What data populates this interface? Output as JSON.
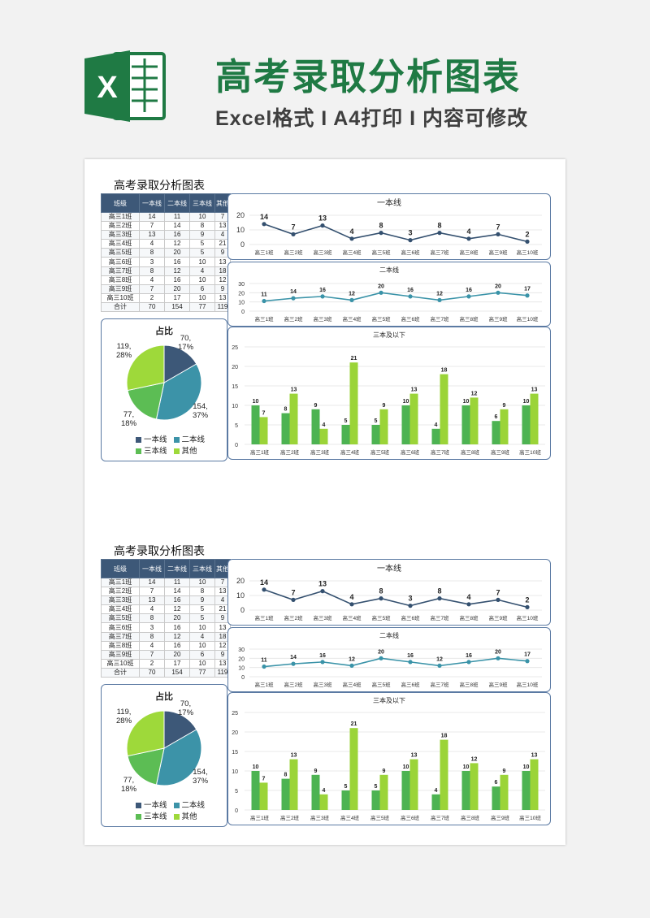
{
  "banner": {
    "logo_letter": "X",
    "title": "高考录取分析图表",
    "subtitle": "Excel格式 I A4打印 I 内容可修改"
  },
  "sheet": {
    "title": "高考录取分析图表",
    "table": {
      "headers": [
        "班级",
        "一本线",
        "二本线",
        "三本线",
        "其他"
      ],
      "rows": [
        [
          "高三1班",
          "14",
          "11",
          "10",
          "7"
        ],
        [
          "高三2班",
          "7",
          "14",
          "8",
          "13"
        ],
        [
          "高三3班",
          "13",
          "16",
          "9",
          "4"
        ],
        [
          "高三4班",
          "4",
          "12",
          "5",
          "21"
        ],
        [
          "高三5班",
          "8",
          "20",
          "5",
          "9"
        ],
        [
          "高三6班",
          "3",
          "16",
          "10",
          "13"
        ],
        [
          "高三7班",
          "8",
          "12",
          "4",
          "18"
        ],
        [
          "高三8班",
          "4",
          "16",
          "10",
          "12"
        ],
        [
          "高三9班",
          "7",
          "20",
          "6",
          "9"
        ],
        [
          "高三10班",
          "2",
          "17",
          "10",
          "13"
        ]
      ],
      "total": [
        "合计",
        "70",
        "154",
        "77",
        "119"
      ]
    },
    "pie": {
      "title": "占比",
      "labels": [
        {
          "line1": "70,",
          "line2": "17%"
        },
        {
          "line1": "154,",
          "line2": "37%"
        },
        {
          "line1": "77,",
          "line2": "18%"
        },
        {
          "line1": "119,",
          "line2": "28%"
        }
      ],
      "legend": [
        "一本线",
        "二本线",
        "三本线",
        "其他"
      ]
    }
  },
  "colors": {
    "banner_green": "#1f7a44",
    "header_navy": "#3d5878",
    "panel_border": "#5b7aa3",
    "line1": "#34506f",
    "line2": "#3a93a8",
    "bar_dark": "#4db352",
    "bar_light": "#9bd438",
    "pie": [
      "#3d5878",
      "#3c93a8",
      "#5cbd54",
      "#9ed93a"
    ]
  },
  "chart_data": [
    {
      "type": "line",
      "title": "一本线",
      "categories": [
        "高三1班",
        "高三2班",
        "高三3班",
        "高三4班",
        "高三5班",
        "高三6班",
        "高三7班",
        "高三8班",
        "高三9班",
        "高三10班"
      ],
      "values": [
        14,
        7,
        13,
        4,
        8,
        3,
        8,
        4,
        7,
        2
      ],
      "yticks": [
        0,
        10,
        20
      ],
      "ylim": [
        0,
        20
      ]
    },
    {
      "type": "line",
      "title": "二本线",
      "categories": [
        "高三1班",
        "高三2班",
        "高三3班",
        "高三4班",
        "高三5班",
        "高三6班",
        "高三7班",
        "高三8班",
        "高三9班",
        "高三10班"
      ],
      "values": [
        11,
        14,
        16,
        12,
        20,
        16,
        12,
        16,
        20,
        17
      ],
      "yticks": [
        0,
        10,
        20,
        30
      ],
      "ylim": [
        0,
        30
      ]
    },
    {
      "type": "bar",
      "title": "三本及以下",
      "categories": [
        "高三1班",
        "高三2班",
        "高三3班",
        "高三4班",
        "高三5班",
        "高三6班",
        "高三7班",
        "高三8班",
        "高三9班",
        "高三10班"
      ],
      "series": [
        {
          "values": [
            10,
            8,
            9,
            5,
            5,
            10,
            4,
            10,
            6,
            10
          ]
        },
        {
          "values": [
            7,
            13,
            4,
            21,
            9,
            13,
            18,
            12,
            9,
            13
          ]
        }
      ],
      "yticks": [
        0,
        5,
        10,
        15,
        20,
        25
      ],
      "ylim": [
        0,
        25
      ]
    },
    {
      "type": "pie",
      "title": "占比",
      "categories": [
        "一本线",
        "二本线",
        "三本线",
        "其他"
      ],
      "values": [
        70,
        154,
        77,
        119
      ],
      "percent_labels": [
        "17%",
        "37%",
        "18%",
        "28%"
      ],
      "legend": "bottom"
    }
  ]
}
